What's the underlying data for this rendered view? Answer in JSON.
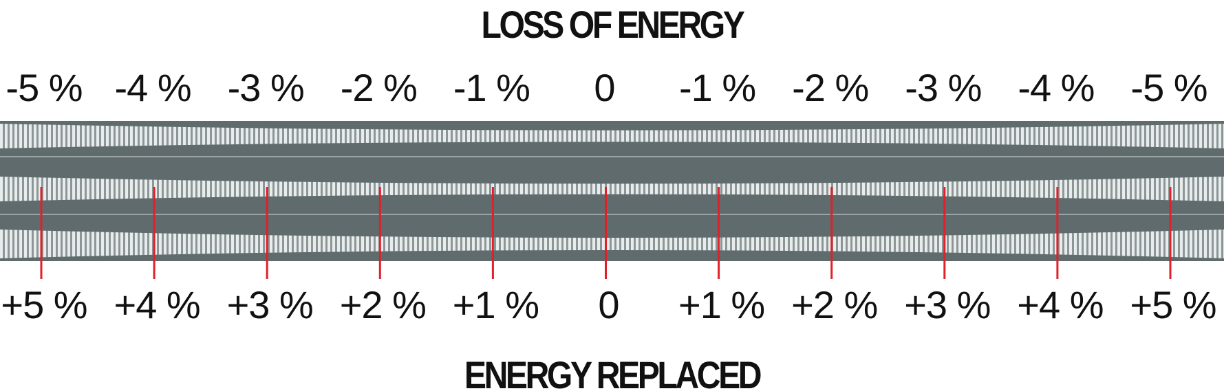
{
  "top_title": "LOSS OF ENERGY",
  "top_labels": [
    "-5 %",
    "-4 %",
    "-3 %",
    "-2 %",
    "-1 %",
    "0",
    "-1 %",
    "-2 %",
    "-3 %",
    "-4 %",
    "-5 %"
  ],
  "bottom_labels": [
    "+5 %",
    "+4 %",
    "+3 %",
    "+2 %",
    "+1 %",
    "0",
    "+1 %",
    "+2 %",
    "+3 %",
    "+4 %",
    "+5 %"
  ],
  "bottom_title": "ENERGY REPLACED"
}
